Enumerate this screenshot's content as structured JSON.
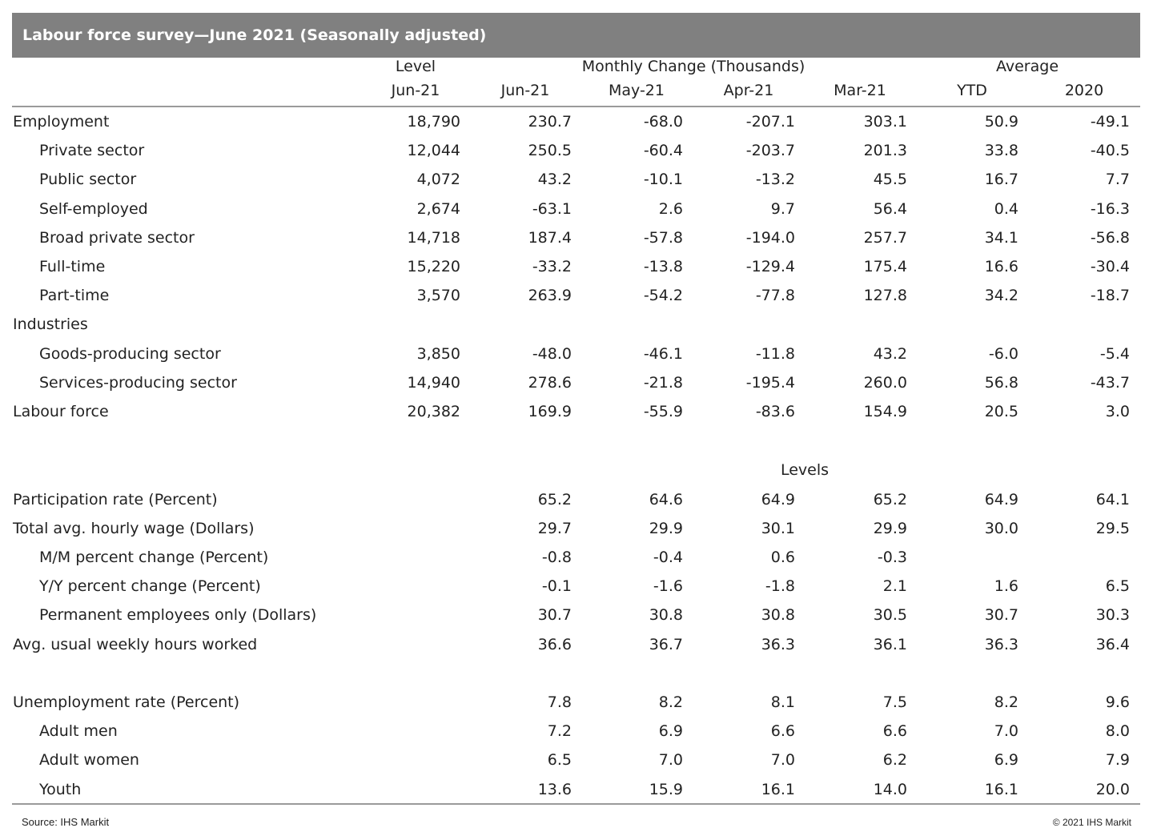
{
  "title": "Labour force survey—June 2021 (Seasonally adjusted)",
  "header": {
    "level_group": "Level",
    "monthly_group": "Monthly Change (Thousands)",
    "average_group": "Average",
    "columns": [
      "Jun-21",
      "Jun-21",
      "May-21",
      "Apr-21",
      "Mar-21",
      "YTD",
      "2020"
    ]
  },
  "rows": [
    {
      "label": "Employment",
      "indent": false,
      "values": [
        "18,790",
        "230.7",
        "-68.0",
        "-207.1",
        "303.1",
        "50.9",
        "-49.1"
      ]
    },
    {
      "label": "Private sector",
      "indent": true,
      "values": [
        "12,044",
        "250.5",
        "-60.4",
        "-203.7",
        "201.3",
        "33.8",
        "-40.5"
      ]
    },
    {
      "label": "Public sector",
      "indent": true,
      "values": [
        "4,072",
        "43.2",
        "-10.1",
        "-13.2",
        "45.5",
        "16.7",
        "7.7"
      ]
    },
    {
      "label": "Self-employed",
      "indent": true,
      "values": [
        "2,674",
        "-63.1",
        "2.6",
        "9.7",
        "56.4",
        "0.4",
        "-16.3"
      ]
    },
    {
      "label": "Broad private sector",
      "indent": true,
      "values": [
        "14,718",
        "187.4",
        "-57.8",
        "-194.0",
        "257.7",
        "34.1",
        "-56.8"
      ]
    },
    {
      "label": "Full-time",
      "indent": true,
      "values": [
        "15,220",
        "-33.2",
        "-13.8",
        "-129.4",
        "175.4",
        "16.6",
        "-30.4"
      ]
    },
    {
      "label": "Part-time",
      "indent": true,
      "values": [
        "3,570",
        "263.9",
        "-54.2",
        "-77.8",
        "127.8",
        "34.2",
        "-18.7"
      ]
    },
    {
      "label": "Industries",
      "indent": false,
      "values": [
        "",
        "",
        "",
        "",
        "",
        "",
        ""
      ]
    },
    {
      "label": "Goods-producing sector",
      "indent": true,
      "values": [
        "3,850",
        "-48.0",
        "-46.1",
        "-11.8",
        "43.2",
        "-6.0",
        "-5.4"
      ]
    },
    {
      "label": "Services-producing sector",
      "indent": true,
      "values": [
        "14,940",
        "278.6",
        "-21.8",
        "-195.4",
        "260.0",
        "56.8",
        "-43.7"
      ]
    },
    {
      "label": "Labour force",
      "indent": false,
      "values": [
        "20,382",
        "169.9",
        "-55.9",
        "-83.6",
        "154.9",
        "20.5",
        "3.0"
      ]
    }
  ],
  "levels_heading": "Levels",
  "rows2": [
    {
      "label": "Participation rate (Percent)",
      "indent": false,
      "values": [
        "",
        "65.2",
        "64.6",
        "64.9",
        "65.2",
        "64.9",
        "64.1"
      ]
    },
    {
      "label": "Total avg. hourly wage (Dollars)",
      "indent": false,
      "values": [
        "",
        "29.7",
        "29.9",
        "30.1",
        "29.9",
        "30.0",
        "29.5"
      ]
    },
    {
      "label": "M/M percent change (Percent)",
      "indent": true,
      "values": [
        "",
        "-0.8",
        "-0.4",
        "0.6",
        "-0.3",
        "",
        ""
      ]
    },
    {
      "label": "Y/Y percent change (Percent)",
      "indent": true,
      "values": [
        "",
        "-0.1",
        "-1.6",
        "-1.8",
        "2.1",
        "1.6",
        "6.5"
      ]
    },
    {
      "label": "Permanent employees only (Dollars)",
      "indent": true,
      "values": [
        "",
        "30.7",
        "30.8",
        "30.8",
        "30.5",
        "30.7",
        "30.3"
      ]
    },
    {
      "label": "Avg. usual weekly hours worked",
      "indent": false,
      "values": [
        "",
        "36.6",
        "36.7",
        "36.3",
        "36.1",
        "36.3",
        "36.4"
      ]
    }
  ],
  "rows3": [
    {
      "label": "Unemployment rate (Percent)",
      "indent": false,
      "values": [
        "",
        "7.8",
        "8.2",
        "8.1",
        "7.5",
        "8.2",
        "9.6"
      ]
    },
    {
      "label": "Adult men",
      "indent": true,
      "values": [
        "",
        "7.2",
        "6.9",
        "6.6",
        "6.6",
        "7.0",
        "8.0"
      ]
    },
    {
      "label": "Adult women",
      "indent": true,
      "values": [
        "",
        "6.5",
        "7.0",
        "7.0",
        "6.2",
        "6.9",
        "7.9"
      ]
    },
    {
      "label": "Youth",
      "indent": true,
      "values": [
        "",
        "13.6",
        "15.9",
        "16.1",
        "14.0",
        "16.1",
        "20.0"
      ]
    }
  ],
  "footer": {
    "source": "Source: IHS Markit",
    "copyright": "© 2021 IHS Markit"
  }
}
